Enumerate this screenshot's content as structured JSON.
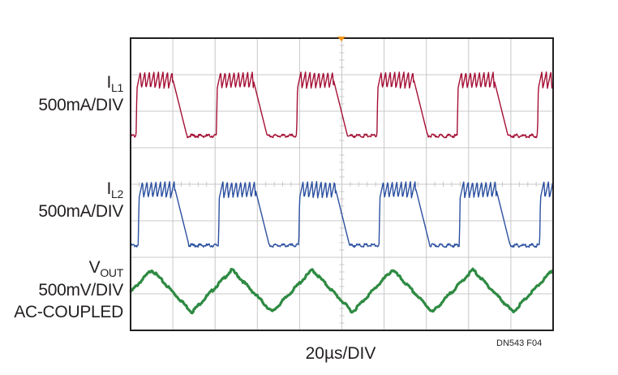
{
  "chart_data": {
    "type": "line",
    "xlabel": "20µs/DIV",
    "figure_id": "DN543 F04",
    "grid": true,
    "divisions": {
      "x": 10,
      "y": 8
    },
    "colors": {
      "frame": "#231f20",
      "grid": "#c8c8c8",
      "il1": "#a50f35",
      "il2": "#2b50a0",
      "vout": "#2e8a42",
      "marker": "#f39a1d"
    },
    "period_div": 1.9,
    "series": [
      {
        "name": "IL1",
        "label_main": "I",
        "label_sub": "L1",
        "scale": "500mA/DIV",
        "kind": "inductor",
        "high_div": 6.85,
        "low_div": 5.35,
        "ripple_div": 0.45,
        "ripple_teeth": 8
      },
      {
        "name": "IL2",
        "label_main": "I",
        "label_sub": "L2",
        "scale": "500mA/DIV",
        "kind": "inductor",
        "high_div": 3.85,
        "low_div": 2.35,
        "ripple_div": 0.45,
        "ripple_teeth": 8
      },
      {
        "name": "VOUT",
        "label_main": "V",
        "label_sub": "OUT",
        "scale": "500mV/DIV",
        "extra": "AC-COUPLED",
        "kind": "triangle",
        "center_div": 1.1,
        "amplitude_div": 0.58
      }
    ]
  }
}
